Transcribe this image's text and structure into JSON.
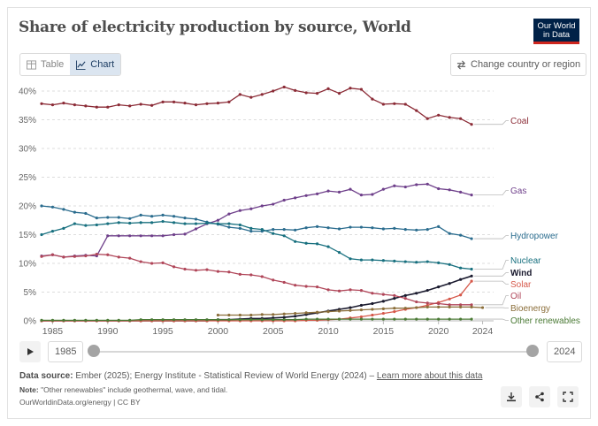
{
  "header": {
    "title": "Share of electricity production by source, World",
    "logo_line1": "Our World",
    "logo_line2": "in Data"
  },
  "tabs": {
    "table_label": "Table",
    "chart_label": "Chart"
  },
  "change_button_label": "Change country or region",
  "timeline": {
    "start_year": "1985",
    "end_year": "2024"
  },
  "footer": {
    "source_label": "Data source:",
    "source_text": "Ember (2025); Energy Institute - Statistical Review of World Energy (2024)",
    "source_sep": " – ",
    "source_link": "Learn more about this data",
    "note_label": "Note:",
    "note_text": "\"Other renewables\" include geothermal, wave, and tidal.",
    "url_text": "OurWorldinData.org/energy | CC BY"
  },
  "colors": {
    "Coal": "#8b2b36",
    "Gas": "#6e3f8a",
    "Hydropower": "#2a6c8e",
    "Nuclear": "#18707f",
    "Wind": "#1a1a2e",
    "Solar": "#d6584a",
    "Oil": "#b04659",
    "Bioenergy": "#8b6e3a",
    "Other renewables": "#4b7a36"
  },
  "chart_data": {
    "type": "line",
    "title": "Share of electricity production by source, World",
    "xlabel": "",
    "ylabel": "",
    "xlim": [
      1984,
      2025
    ],
    "ylim": [
      0,
      40
    ],
    "yticks": [
      "0%",
      "5%",
      "10%",
      "15%",
      "20%",
      "25%",
      "30%",
      "35%",
      "40%"
    ],
    "xticks": [
      1985,
      1990,
      1995,
      2000,
      2005,
      2010,
      2015,
      2020,
      2024
    ],
    "grid": true,
    "series": [
      {
        "name": "Coal",
        "start": 1984,
        "values": [
          37.8,
          37.6,
          37.9,
          37.6,
          37.4,
          37.2,
          37.2,
          37.6,
          37.4,
          37.7,
          37.5,
          38.1,
          38.1,
          37.9,
          37.6,
          37.8,
          37.9,
          38.1,
          39.4,
          38.9,
          39.4,
          40.0,
          40.7,
          40.1,
          39.7,
          39.6,
          40.4,
          39.6,
          40.5,
          40.3,
          38.6,
          37.7,
          37.8,
          37.7,
          36.6,
          35.2,
          35.8,
          35.4,
          35.2,
          34.2
        ]
      },
      {
        "name": "Gas",
        "start": 1984,
        "values": [
          11.3,
          11.5,
          11.1,
          11.3,
          11.4,
          11.3,
          14.8,
          14.8,
          14.8,
          14.8,
          14.8,
          14.8,
          15.0,
          15.1,
          16.0,
          16.9,
          17.5,
          18.6,
          19.2,
          19.5,
          20.0,
          20.3,
          21.0,
          21.4,
          21.8,
          22.1,
          22.6,
          22.4,
          22.9,
          21.9,
          22.0,
          22.9,
          23.5,
          23.3,
          23.7,
          23.8,
          23.0,
          22.8,
          22.4,
          21.9
        ]
      },
      {
        "name": "Hydropower",
        "start": 1984,
        "values": [
          20.0,
          19.8,
          19.4,
          18.9,
          18.7,
          17.9,
          18.0,
          18.0,
          17.8,
          18.4,
          18.2,
          18.4,
          18.2,
          17.9,
          17.7,
          17.2,
          16.8,
          16.3,
          16.1,
          15.6,
          15.6,
          15.9,
          15.9,
          15.8,
          16.2,
          16.4,
          16.2,
          16.0,
          16.3,
          16.3,
          16.2,
          16.0,
          16.1,
          15.9,
          15.8,
          15.9,
          16.4,
          15.2,
          14.9,
          14.3
        ]
      },
      {
        "name": "Nuclear",
        "start": 1984,
        "values": [
          15.0,
          15.6,
          16.1,
          16.9,
          16.6,
          16.7,
          16.9,
          17.1,
          17.0,
          17.1,
          17.1,
          17.3,
          17.1,
          16.9,
          16.9,
          17.0,
          16.9,
          16.9,
          16.7,
          16.1,
          15.9,
          15.2,
          14.8,
          13.8,
          13.5,
          13.4,
          12.9,
          11.9,
          10.8,
          10.6,
          10.6,
          10.5,
          10.4,
          10.3,
          10.2,
          10.3,
          10.1,
          9.8,
          9.2,
          9.0
        ]
      },
      {
        "name": "Wind",
        "start": 1984,
        "values": [
          0,
          0,
          0,
          0,
          0,
          0,
          0,
          0,
          0,
          0,
          0,
          0,
          0,
          0,
          0,
          0,
          0.2,
          0.2,
          0.3,
          0.4,
          0.4,
          0.5,
          0.6,
          0.8,
          1.1,
          1.4,
          1.7,
          2.0,
          2.3,
          2.7,
          3.0,
          3.4,
          3.9,
          4.4,
          4.8,
          5.3,
          5.9,
          6.5,
          7.2,
          7.8
        ]
      },
      {
        "name": "Solar",
        "start": 1984,
        "values": [
          0,
          0,
          0,
          0,
          0,
          0,
          0,
          0,
          0,
          0,
          0,
          0,
          0,
          0,
          0,
          0,
          0,
          0,
          0,
          0,
          0,
          0,
          0,
          0,
          0.1,
          0.1,
          0.2,
          0.3,
          0.5,
          0.7,
          1.0,
          1.3,
          1.6,
          2.0,
          2.3,
          2.7,
          3.2,
          3.8,
          4.5,
          6.9
        ]
      },
      {
        "name": "Oil",
        "start": 1984,
        "values": [
          11.2,
          11.5,
          11.1,
          11.2,
          11.3,
          11.6,
          11.5,
          11.1,
          10.9,
          10.3,
          10.0,
          10.1,
          9.4,
          9.0,
          8.8,
          8.9,
          8.6,
          8.5,
          8.1,
          8.0,
          7.7,
          7.1,
          6.7,
          6.2,
          6.0,
          5.9,
          5.4,
          5.2,
          5.4,
          5.3,
          4.8,
          4.6,
          4.4,
          3.9,
          3.3,
          3.1,
          3.0,
          2.8,
          2.8,
          2.8
        ]
      },
      {
        "name": "Bioenergy",
        "start": 2000,
        "values": [
          1.0,
          1.0,
          1.0,
          1.0,
          1.1,
          1.1,
          1.2,
          1.3,
          1.4,
          1.5,
          1.6,
          1.7,
          1.8,
          1.9,
          2.0,
          2.1,
          2.2,
          2.2,
          2.3,
          2.4,
          2.4,
          2.4,
          2.4,
          2.4,
          2.3
        ]
      },
      {
        "name": "Other renewables",
        "start": 1984,
        "values": [
          0.1,
          0.1,
          0.1,
          0.1,
          0.1,
          0.1,
          0.1,
          0.1,
          0.1,
          0.2,
          0.2,
          0.2,
          0.2,
          0.2,
          0.2,
          0.2,
          0.2,
          0.2,
          0.2,
          0.2,
          0.2,
          0.2,
          0.2,
          0.2,
          0.3,
          0.3,
          0.3,
          0.3,
          0.3,
          0.3,
          0.3,
          0.3,
          0.3,
          0.3,
          0.3,
          0.3,
          0.3,
          0.3,
          0.3,
          0.3
        ]
      }
    ]
  }
}
